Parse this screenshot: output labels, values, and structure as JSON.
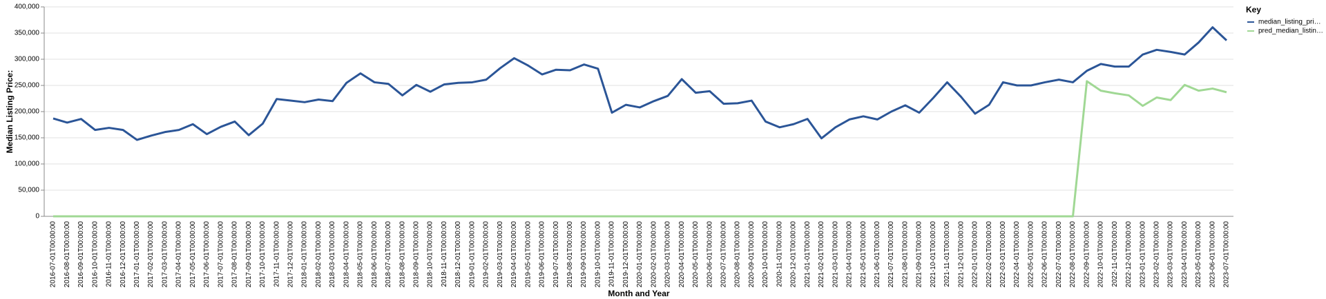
{
  "chart_data": {
    "type": "line",
    "x_label": "Month and Year",
    "y_label": "Median Listing Price:",
    "legend_title": "Key",
    "legend_position": "right",
    "grid": true,
    "categories": [
      "2016-07-01T00:00:00",
      "2016-08-01T00:00:00",
      "2016-09-01T00:00:00",
      "2016-10-01T00:00:00",
      "2016-11-01T00:00:00",
      "2016-12-01T00:00:00",
      "2017-01-01T00:00:00",
      "2017-02-01T00:00:00",
      "2017-03-01T00:00:00",
      "2017-04-01T00:00:00",
      "2017-05-01T00:00:00",
      "2017-06-01T00:00:00",
      "2017-07-01T00:00:00",
      "2017-08-01T00:00:00",
      "2017-09-01T00:00:00",
      "2017-10-01T00:00:00",
      "2017-11-01T00:00:00",
      "2017-12-01T00:00:00",
      "2018-01-01T00:00:00",
      "2018-02-01T00:00:00",
      "2018-03-01T00:00:00",
      "2018-04-01T00:00:00",
      "2018-05-01T00:00:00",
      "2018-06-01T00:00:00",
      "2018-07-01T00:00:00",
      "2018-08-01T00:00:00",
      "2018-09-01T00:00:00",
      "2018-10-01T00:00:00",
      "2018-11-01T00:00:00",
      "2018-12-01T00:00:00",
      "2019-01-01T00:00:00",
      "2019-02-01T00:00:00",
      "2019-03-01T00:00:00",
      "2019-04-01T00:00:00",
      "2019-05-01T00:00:00",
      "2019-06-01T00:00:00",
      "2019-07-01T00:00:00",
      "2019-08-01T00:00:00",
      "2019-09-01T00:00:00",
      "2019-10-01T00:00:00",
      "2019-11-01T00:00:00",
      "2019-12-01T00:00:00",
      "2020-01-01T00:00:00",
      "2020-02-01T00:00:00",
      "2020-03-01T00:00:00",
      "2020-04-01T00:00:00",
      "2020-05-01T00:00:00",
      "2020-06-01T00:00:00",
      "2020-07-01T00:00:00",
      "2020-08-01T00:00:00",
      "2020-09-01T00:00:00",
      "2020-10-01T00:00:00",
      "2020-11-01T00:00:00",
      "2020-12-01T00:00:00",
      "2021-01-01T00:00:00",
      "2021-02-01T00:00:00",
      "2021-03-01T00:00:00",
      "2021-04-01T00:00:00",
      "2021-05-01T00:00:00",
      "2021-06-01T00:00:00",
      "2021-07-01T00:00:00",
      "2021-08-01T00:00:00",
      "2021-09-01T00:00:00",
      "2021-10-01T00:00:00",
      "2021-11-01T00:00:00",
      "2021-12-01T00:00:00",
      "2022-01-01T00:00:00",
      "2022-02-01T00:00:00",
      "2022-03-01T00:00:00",
      "2022-04-01T00:00:00",
      "2022-05-01T00:00:00",
      "2022-06-01T00:00:00",
      "2022-07-01T00:00:00",
      "2022-08-01T00:00:00",
      "2022-09-01T00:00:00",
      "2022-10-01T00:00:00",
      "2022-11-01T00:00:00",
      "2022-12-01T00:00:00",
      "2023-01-01T00:00:00",
      "2023-02-01T00:00:00",
      "2023-03-01T00:00:00",
      "2023-04-01T00:00:00",
      "2023-05-01T00:00:00",
      "2023-06-01T00:00:00",
      "2023-07-01T00:00:00"
    ],
    "series": [
      {
        "name": "median_listing_pri…",
        "color": "#2b5597",
        "values": [
          187000,
          179000,
          186000,
          165000,
          169000,
          165000,
          146000,
          154000,
          161000,
          165000,
          176000,
          157000,
          171000,
          181000,
          155000,
          177000,
          224000,
          221000,
          218000,
          223000,
          220000,
          255000,
          273000,
          256000,
          253000,
          231000,
          251000,
          238000,
          252000,
          255000,
          256000,
          261000,
          283000,
          302000,
          288000,
          271000,
          280000,
          279000,
          290000,
          282000,
          198000,
          213000,
          208000,
          220000,
          230000,
          262000,
          236000,
          239000,
          215000,
          216000,
          221000,
          181000,
          170000,
          176000,
          186000,
          149000,
          170000,
          185000,
          191000,
          185000,
          200000,
          212000,
          198000,
          226000,
          256000,
          228000,
          196000,
          213000,
          256000,
          250000,
          250000,
          256000,
          261000,
          256000,
          278000,
          291000,
          286000,
          286000,
          309000,
          318000,
          314000,
          309000,
          332000,
          361000,
          336000
        ]
      },
      {
        "name": "pred_median_listin…",
        "color": "#a0d894",
        "values": [
          0,
          0,
          0,
          0,
          0,
          0,
          0,
          0,
          0,
          0,
          0,
          0,
          0,
          0,
          0,
          0,
          0,
          0,
          0,
          0,
          0,
          0,
          0,
          0,
          0,
          0,
          0,
          0,
          0,
          0,
          0,
          0,
          0,
          0,
          0,
          0,
          0,
          0,
          0,
          0,
          0,
          0,
          0,
          0,
          0,
          0,
          0,
          0,
          0,
          0,
          0,
          0,
          0,
          0,
          0,
          0,
          0,
          0,
          0,
          0,
          0,
          0,
          0,
          0,
          0,
          0,
          0,
          0,
          0,
          0,
          0,
          0,
          0,
          0,
          258000,
          240000,
          235000,
          231000,
          211000,
          227000,
          222000,
          251000,
          240000,
          244000,
          237000
        ]
      }
    ],
    "ylim": [
      0,
      400000
    ],
    "yticks": [
      0,
      {
        "value": 50000,
        "label": "50,000"
      },
      {
        "value": 100000,
        "label": "100,000"
      },
      {
        "value": 150000,
        "label": "150,000"
      },
      {
        "value": 200000,
        "label": "200,000"
      },
      {
        "value": 250000,
        "label": "250,000"
      },
      {
        "value": 300000,
        "label": "300,000"
      },
      {
        "value": 350000,
        "label": "350,000"
      },
      {
        "value": 400000,
        "label": "400,000"
      }
    ]
  }
}
